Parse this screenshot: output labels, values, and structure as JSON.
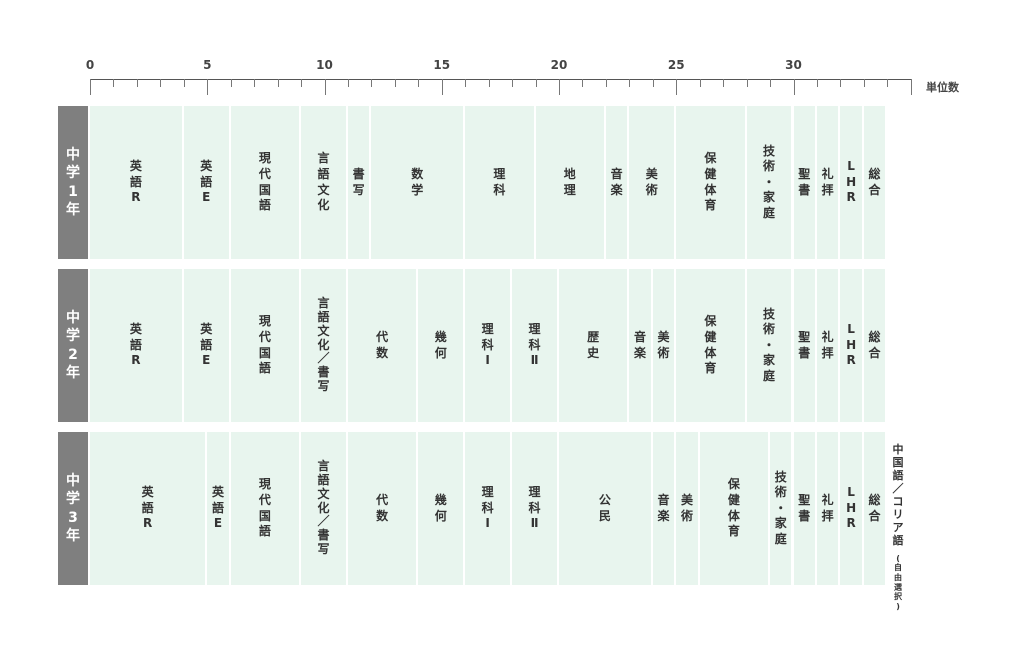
{
  "axis": {
    "unit_label": "単位数",
    "ticks": [
      0,
      5,
      10,
      15,
      20,
      25,
      30
    ]
  },
  "grades": [
    {
      "label": "中学1年",
      "subjects": [
        {
          "name": "英語R",
          "units": 4
        },
        {
          "name": "英語E",
          "units": 2
        },
        {
          "name": "現代国語",
          "units": 3
        },
        {
          "name": "言語文化",
          "units": 2
        },
        {
          "name": "書写",
          "units": 1
        },
        {
          "name": "数学",
          "units": 4
        },
        {
          "name": "理科",
          "units": 3
        },
        {
          "name": "地理",
          "units": 3
        },
        {
          "name": "音楽",
          "units": 1
        },
        {
          "name": "美術",
          "units": 2
        },
        {
          "name": "保健体育",
          "units": 3
        },
        {
          "name": "技術・家庭",
          "units": 2
        },
        {
          "name": "聖書",
          "units": 1
        },
        {
          "name": "礼拝",
          "units": 1
        },
        {
          "name": "LHR",
          "units": 1
        },
        {
          "name": "総合",
          "units": 1
        }
      ]
    },
    {
      "label": "中学2年",
      "subjects": [
        {
          "name": "英語R",
          "units": 4
        },
        {
          "name": "英語E",
          "units": 2
        },
        {
          "name": "現代国語",
          "units": 3
        },
        {
          "name": "言語文化／書写",
          "units": 2
        },
        {
          "name": "代数",
          "units": 3
        },
        {
          "name": "幾何",
          "units": 2
        },
        {
          "name": "理科Ⅰ",
          "units": 2
        },
        {
          "name": "理科Ⅱ",
          "units": 2
        },
        {
          "name": "歴史",
          "units": 3
        },
        {
          "name": "音楽",
          "units": 1
        },
        {
          "name": "美術",
          "units": 1
        },
        {
          "name": "保健体育",
          "units": 3
        },
        {
          "name": "技術・家庭",
          "units": 2
        },
        {
          "name": "聖書",
          "units": 1
        },
        {
          "name": "礼拝",
          "units": 1
        },
        {
          "name": "LHR",
          "units": 1
        },
        {
          "name": "総合",
          "units": 1
        }
      ]
    },
    {
      "label": "中学3年",
      "subjects": [
        {
          "name": "英語R",
          "units": 5
        },
        {
          "name": "英語E",
          "units": 1
        },
        {
          "name": "現代国語",
          "units": 3
        },
        {
          "name": "言語文化／書写",
          "units": 2
        },
        {
          "name": "代数",
          "units": 3
        },
        {
          "name": "幾何",
          "units": 2
        },
        {
          "name": "理科Ⅰ",
          "units": 2
        },
        {
          "name": "理科Ⅱ",
          "units": 2
        },
        {
          "name": "公民",
          "units": 4
        },
        {
          "name": "音楽",
          "units": 1
        },
        {
          "name": "美術",
          "units": 1
        },
        {
          "name": "保健体育",
          "units": 3
        },
        {
          "name": "技術・家庭",
          "units": 1
        },
        {
          "name": "聖書",
          "units": 1
        },
        {
          "name": "礼拝",
          "units": 1
        },
        {
          "name": "LHR",
          "units": 1
        },
        {
          "name": "総合",
          "units": 1
        },
        {
          "name": "中国語／コリア語",
          "note": "(自由選択)",
          "units": 1,
          "elective": true
        }
      ]
    }
  ],
  "colors": {
    "cell": "#e8f5ee",
    "header": "#7f7f7f",
    "elective": "#ffffff"
  }
}
